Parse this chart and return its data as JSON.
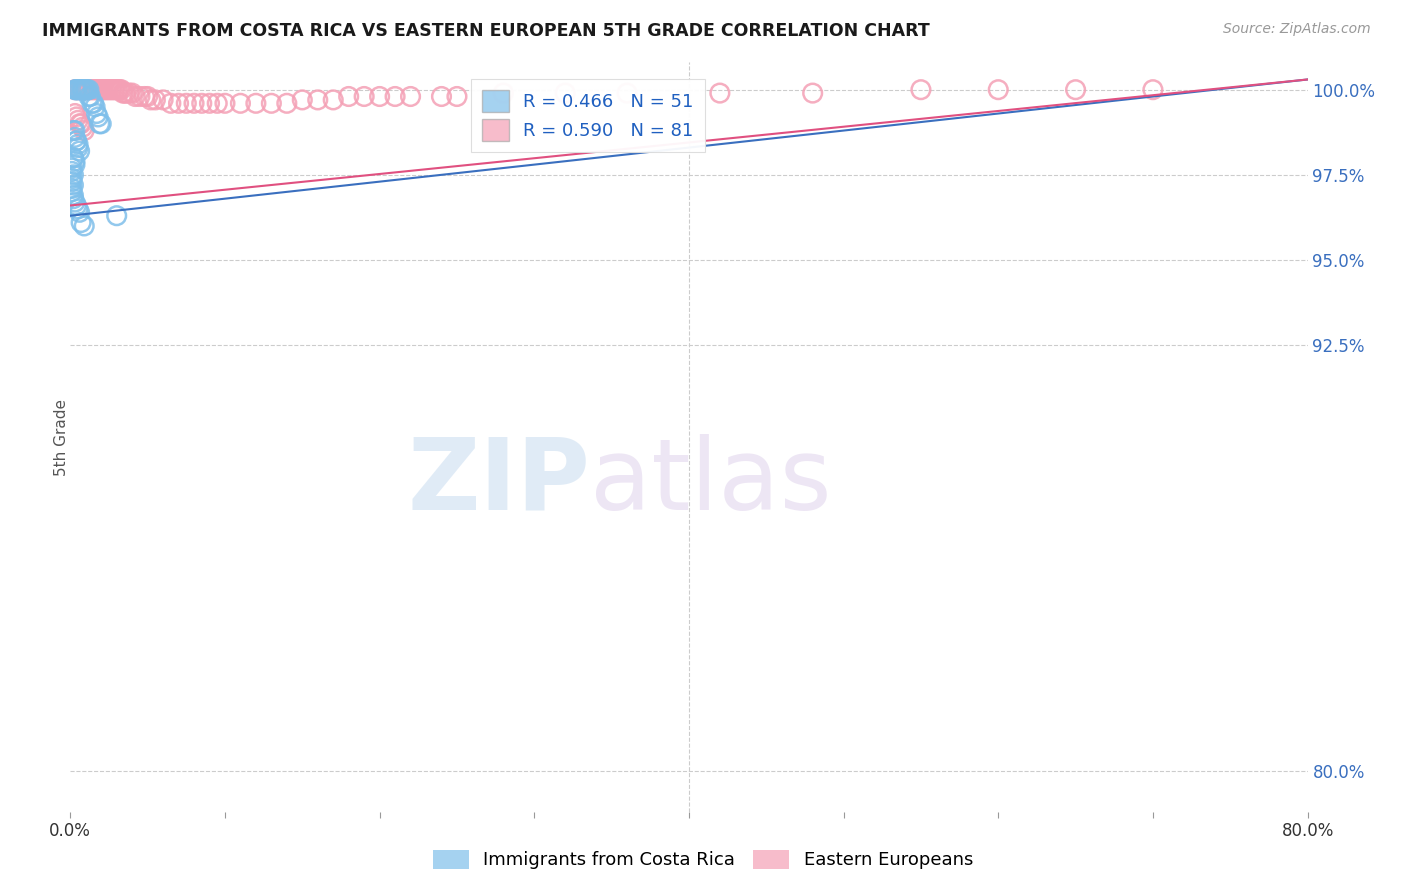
{
  "title": "IMMIGRANTS FROM COSTA RICA VS EASTERN EUROPEAN 5TH GRADE CORRELATION CHART",
  "source": "Source: ZipAtlas.com",
  "ylabel_label": "5th Grade",
  "xlim": [
    0.0,
    0.8
  ],
  "ylim": [
    0.788,
    1.008
  ],
  "blue_R": 0.466,
  "blue_N": 51,
  "pink_R": 0.59,
  "pink_N": 81,
  "blue_color": "#7fbfea",
  "pink_color": "#f4a0b5",
  "blue_line_color": "#3a6fbf",
  "pink_line_color": "#e05080",
  "legend_label_blue": "Immigrants from Costa Rica",
  "legend_label_pink": "Eastern Europeans",
  "watermark_zip": "ZIP",
  "watermark_atlas": "atlas",
  "ytick_vals": [
    0.8,
    0.925,
    0.95,
    0.975,
    1.0
  ],
  "ytick_labels": [
    "80.0%",
    "92.5%",
    "95.0%",
    "97.5%",
    "100.0%"
  ],
  "blue_x": [
    0.003,
    0.004,
    0.004,
    0.005,
    0.006,
    0.007,
    0.008,
    0.008,
    0.009,
    0.01,
    0.01,
    0.011,
    0.012,
    0.012,
    0.013,
    0.014,
    0.015,
    0.016,
    0.017,
    0.018,
    0.019,
    0.02,
    0.002,
    0.003,
    0.003,
    0.004,
    0.004,
    0.005,
    0.005,
    0.006,
    0.002,
    0.002,
    0.003,
    0.003,
    0.001,
    0.001,
    0.002,
    0.001,
    0.001,
    0.002,
    0.001,
    0.001,
    0.002,
    0.002,
    0.003,
    0.004,
    0.005,
    0.006,
    0.03,
    0.007,
    0.009
  ],
  "blue_y": [
    1.0,
    1.0,
    1.0,
    1.0,
    1.0,
    1.0,
    1.0,
    1.0,
    1.0,
    1.0,
    1.0,
    1.0,
    1.0,
    0.998,
    0.998,
    0.996,
    0.996,
    0.995,
    0.993,
    0.992,
    0.99,
    0.99,
    0.988,
    0.988,
    0.986,
    0.985,
    0.985,
    0.984,
    0.983,
    0.982,
    0.98,
    0.98,
    0.979,
    0.978,
    0.977,
    0.976,
    0.975,
    0.974,
    0.973,
    0.972,
    0.971,
    0.97,
    0.969,
    0.968,
    0.967,
    0.966,
    0.965,
    0.964,
    0.963,
    0.961,
    0.96
  ],
  "pink_x": [
    0.003,
    0.004,
    0.005,
    0.006,
    0.007,
    0.008,
    0.009,
    0.01,
    0.011,
    0.012,
    0.013,
    0.014,
    0.015,
    0.016,
    0.017,
    0.018,
    0.019,
    0.02,
    0.021,
    0.022,
    0.023,
    0.024,
    0.025,
    0.026,
    0.027,
    0.028,
    0.029,
    0.03,
    0.031,
    0.032,
    0.033,
    0.034,
    0.035,
    0.036,
    0.038,
    0.04,
    0.042,
    0.045,
    0.048,
    0.05,
    0.052,
    0.055,
    0.06,
    0.065,
    0.07,
    0.075,
    0.08,
    0.085,
    0.09,
    0.095,
    0.1,
    0.11,
    0.12,
    0.13,
    0.14,
    0.15,
    0.16,
    0.17,
    0.18,
    0.19,
    0.2,
    0.21,
    0.22,
    0.24,
    0.25,
    0.28,
    0.32,
    0.36,
    0.42,
    0.48,
    0.55,
    0.6,
    0.65,
    0.7,
    0.003,
    0.004,
    0.005,
    0.006,
    0.007,
    0.008,
    0.009
  ],
  "pink_y": [
    1.0,
    1.0,
    1.0,
    1.0,
    1.0,
    1.0,
    1.0,
    1.0,
    1.0,
    1.0,
    1.0,
    1.0,
    1.0,
    1.0,
    1.0,
    1.0,
    1.0,
    1.0,
    1.0,
    1.0,
    1.0,
    1.0,
    1.0,
    1.0,
    1.0,
    1.0,
    1.0,
    1.0,
    1.0,
    1.0,
    1.0,
    0.999,
    0.999,
    0.999,
    0.999,
    0.999,
    0.998,
    0.998,
    0.998,
    0.998,
    0.997,
    0.997,
    0.997,
    0.996,
    0.996,
    0.996,
    0.996,
    0.996,
    0.996,
    0.996,
    0.996,
    0.996,
    0.996,
    0.996,
    0.996,
    0.997,
    0.997,
    0.997,
    0.998,
    0.998,
    0.998,
    0.998,
    0.998,
    0.998,
    0.998,
    0.999,
    0.999,
    0.999,
    0.999,
    0.999,
    1.0,
    1.0,
    1.0,
    1.0,
    0.993,
    0.992,
    0.991,
    0.99,
    0.99,
    0.989,
    0.988
  ],
  "blue_trendline_x": [
    0.0,
    0.8
  ],
  "blue_trendline_y": [
    0.963,
    1.003
  ],
  "pink_trendline_x": [
    0.0,
    0.8
  ],
  "pink_trendline_y": [
    0.966,
    1.003
  ]
}
